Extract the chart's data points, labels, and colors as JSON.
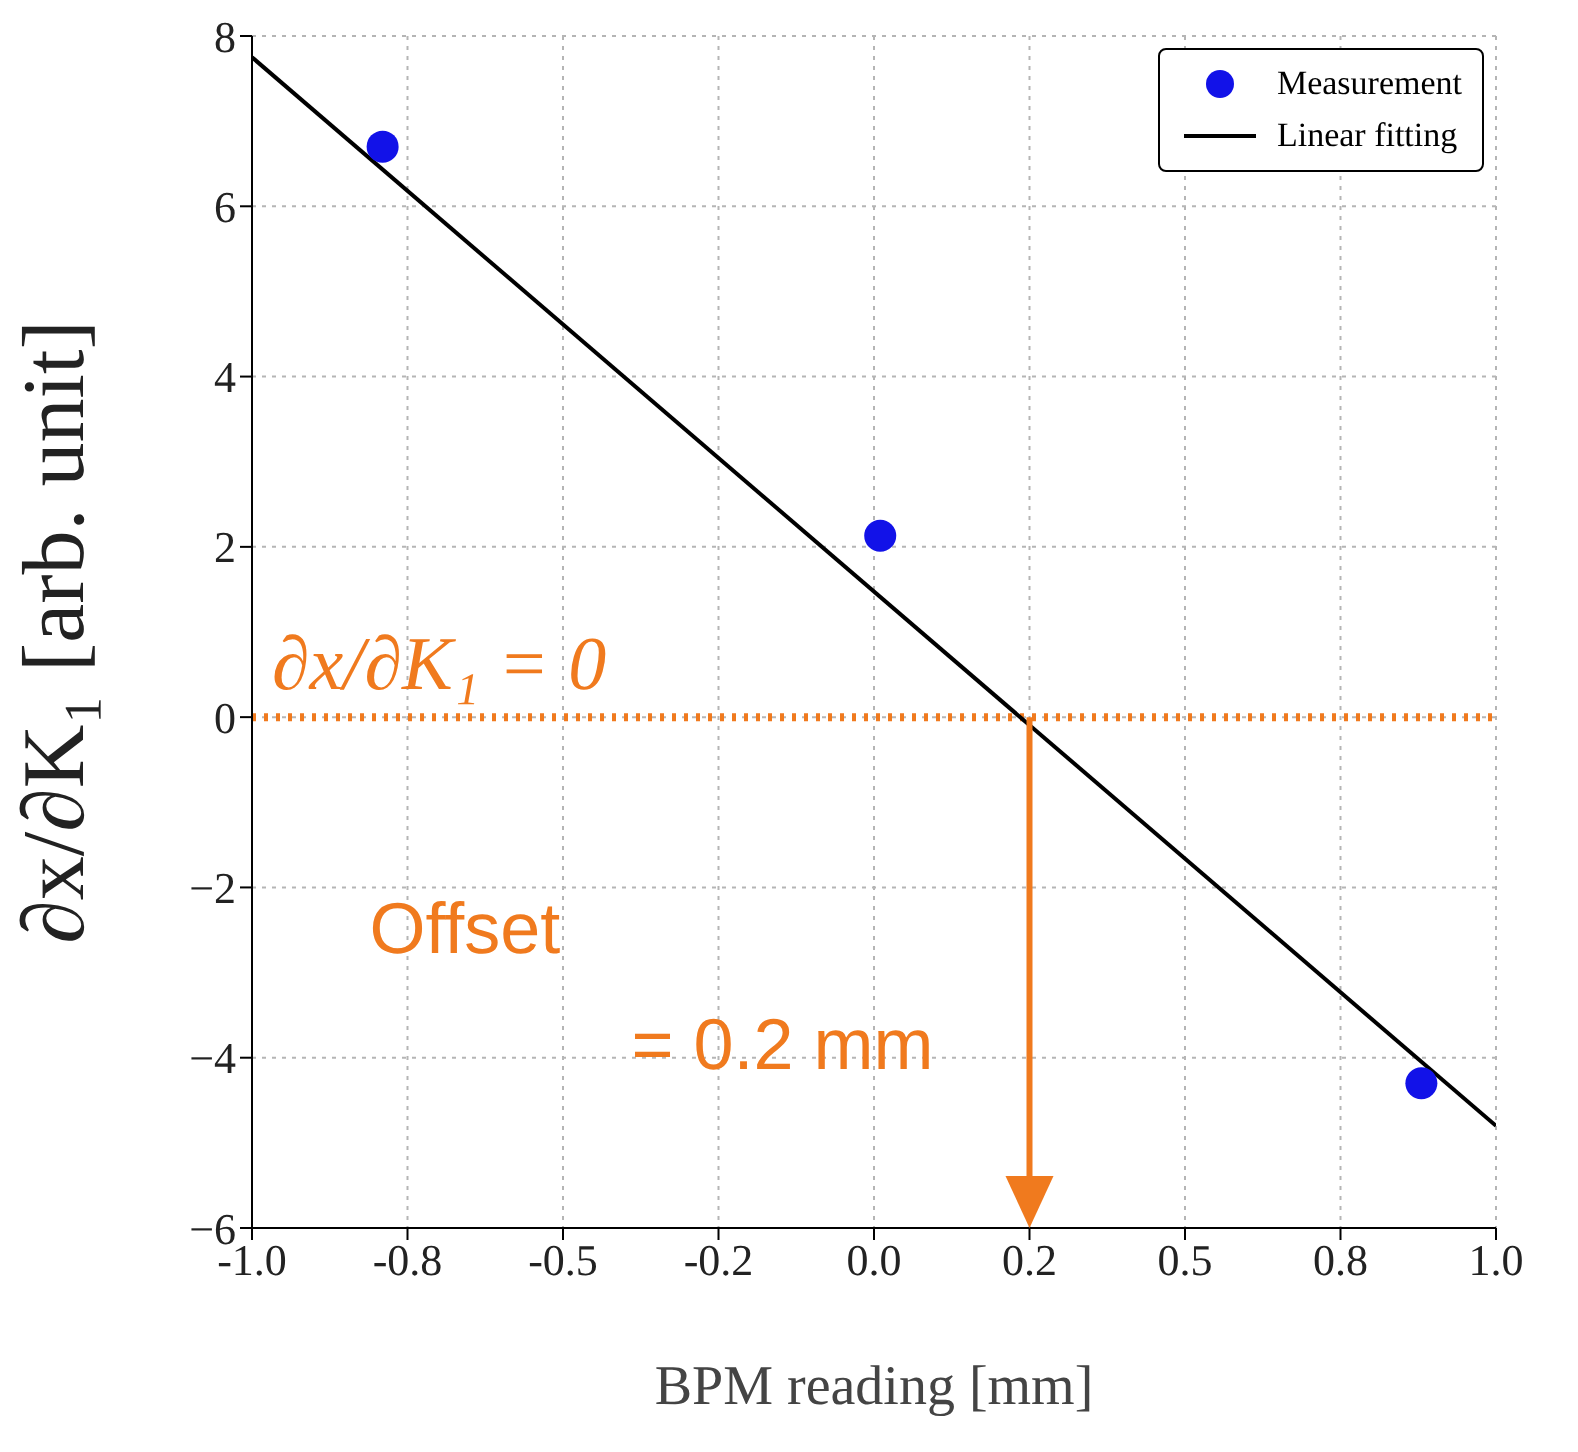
{
  "chart_data": {
    "type": "scatter",
    "xlabel": "BPM reading [mm]",
    "ylabel": "∂x/∂K₁ [arb. unit]",
    "xlim": [
      -1.0,
      1.0
    ],
    "ylim": [
      -6,
      8
    ],
    "xticks": [
      {
        "value": -1.0,
        "label": "-1.0"
      },
      {
        "value": -0.75,
        "label": "-0.8"
      },
      {
        "value": -0.5,
        "label": "-0.5"
      },
      {
        "value": -0.25,
        "label": "-0.2"
      },
      {
        "value": 0.0,
        "label": "0.0"
      },
      {
        "value": 0.25,
        "label": "0.2"
      },
      {
        "value": 0.5,
        "label": "0.5"
      },
      {
        "value": 0.75,
        "label": "0.8"
      },
      {
        "value": 1.0,
        "label": "1.0"
      }
    ],
    "yticks": [
      -6,
      -4,
      -2,
      0,
      2,
      4,
      6,
      8
    ],
    "grid": true,
    "legend": "top right",
    "marker": "circle",
    "series": [
      {
        "name": "Measurement",
        "type": "scatter",
        "color": "#1212e8",
        "x": [
          -0.79,
          0.01,
          0.88
        ],
        "values": [
          6.7,
          2.13,
          -4.3
        ]
      },
      {
        "name": "Linear fitting",
        "type": "line",
        "color": "#000000",
        "x": [
          -1.0,
          1.0
        ],
        "values": [
          7.75,
          -4.8
        ],
        "marker": "none",
        "line_style": "solid"
      }
    ],
    "ref_lines": [
      {
        "axis": "y",
        "value": 0,
        "label": "∂x/∂K₁ = 0",
        "color": "#f07a1e",
        "line_style": "dotted"
      }
    ],
    "annotations": [
      {
        "text": "Offset = 0.2 mm",
        "x": 0.25,
        "y": 0
      }
    ]
  }
}
